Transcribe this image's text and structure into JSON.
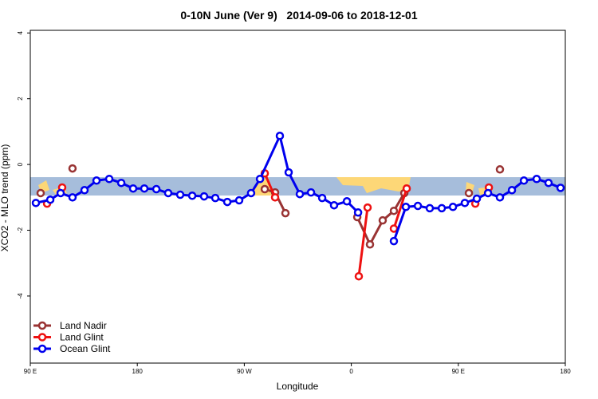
{
  "chart_data": {
    "type": "line",
    "title": "0-10N June (Ver 9)   2014-09-06 to 2018-12-01",
    "x_label": "Longitude",
    "y_label": "XCO2 - MLO trend (ppm)",
    "xlim": [
      90,
      540
    ],
    "ylim": [
      -6.04,
      4.08
    ],
    "xticks": [
      {
        "value": 90,
        "label": "90 E"
      },
      180,
      {
        "value": 270,
        "label": "90 W"
      },
      {
        "value": 360,
        "label": "0"
      },
      {
        "value": 450,
        "label": "90 E"
      },
      {
        "value": 540,
        "label": "180"
      }
    ],
    "yticks": [
      -4,
      -2,
      0,
      2,
      4
    ],
    "legend": "bottom-left",
    "series": [
      {
        "name": "Land Nadir",
        "color": "#993333",
        "x": [
          98.7,
          null,
          125.5,
          null,
          287.2,
          295.9,
          304.6,
          null,
          365.0,
          375.7,
          386.4,
          395.8,
          404.6,
          null,
          458.9,
          null,
          485.0
        ],
        "values": [
          -0.87,
          null,
          -0.12,
          null,
          -0.75,
          -0.85,
          -1.48,
          null,
          -1.6,
          -2.43,
          -1.7,
          -1.41,
          -0.87,
          null,
          -0.87,
          null,
          -0.15
        ]
      },
      {
        "name": "Land Glint",
        "color": "#ee1111",
        "x": [
          104.1,
          null,
          116.8,
          null,
          287.2,
          295.9,
          null,
          366.3,
          373.7,
          null,
          395.8,
          406.6,
          null,
          464.3,
          null,
          475.7
        ],
        "values": [
          -1.19,
          null,
          -0.7,
          null,
          -0.27,
          -1.0,
          null,
          -3.4,
          -1.31,
          null,
          -1.95,
          -0.73,
          null,
          -1.19,
          null,
          -0.7
        ]
      },
      {
        "name": "Ocean Glint",
        "color": "#0000ee",
        "x": [
          94.7,
          106.8,
          115.5,
          125.5,
          135.6,
          145.7,
          156.4,
          166.5,
          176.5,
          185.9,
          196.0,
          206.0,
          216.1,
          226.2,
          236.2,
          245.6,
          255.7,
          265.7,
          275.7,
          283.2,
          299.9,
          307.3,
          316.7,
          326.1,
          335.5,
          345.5,
          356.3,
          365.7,
          null,
          395.8,
          405.9,
          416.0,
          426.0,
          436.1,
          445.5,
          455.5,
          465.6,
          475.0,
          485.0,
          495.1,
          505.2,
          515.9,
          525.9,
          536.0
        ],
        "values": [
          -1.17,
          -1.07,
          -0.87,
          -1.0,
          -0.78,
          -0.49,
          -0.44,
          -0.56,
          -0.73,
          -0.73,
          -0.75,
          -0.87,
          -0.92,
          -0.95,
          -0.97,
          -1.02,
          -1.14,
          -1.09,
          -0.87,
          -0.44,
          0.87,
          -0.24,
          -0.9,
          -0.85,
          -1.02,
          -1.24,
          -1.12,
          -1.46,
          null,
          -2.33,
          -1.29,
          -1.26,
          -1.33,
          -1.33,
          -1.29,
          -1.17,
          -1.04,
          -0.87,
          -1.0,
          -0.78,
          -0.49,
          -0.44,
          -0.56,
          -0.71
        ]
      }
    ]
  }
}
